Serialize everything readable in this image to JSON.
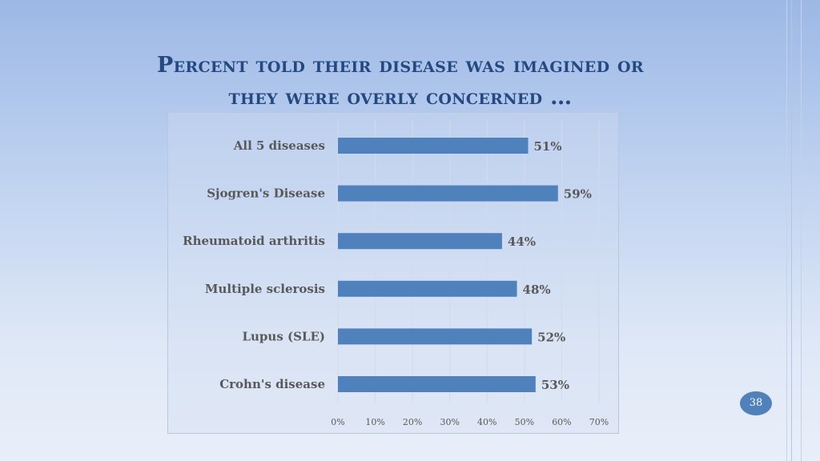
{
  "slide": {
    "title_line1": "Percent told their disease was imagined or",
    "title_line2": "they were overly concerned …",
    "page_number": "38"
  },
  "colors": {
    "bar": "#4f81bd",
    "title": "#24487f",
    "label": "#595959"
  },
  "chart_data": {
    "type": "bar",
    "orientation": "horizontal",
    "categories": [
      "All 5 diseases",
      "Sjogren's Disease",
      "Rheumatoid arthritis",
      "Multiple sclerosis",
      "Lupus (SLE)",
      "Crohn's disease"
    ],
    "values": [
      51,
      59,
      44,
      48,
      52,
      53
    ],
    "value_labels": [
      "51%",
      "59%",
      "44%",
      "48%",
      "52%",
      "53%"
    ],
    "xlim": [
      0,
      70
    ],
    "xticks": [
      "0%",
      "10%",
      "20%",
      "30%",
      "40%",
      "50%",
      "60%",
      "70%"
    ],
    "grid": true,
    "legend": "none"
  }
}
